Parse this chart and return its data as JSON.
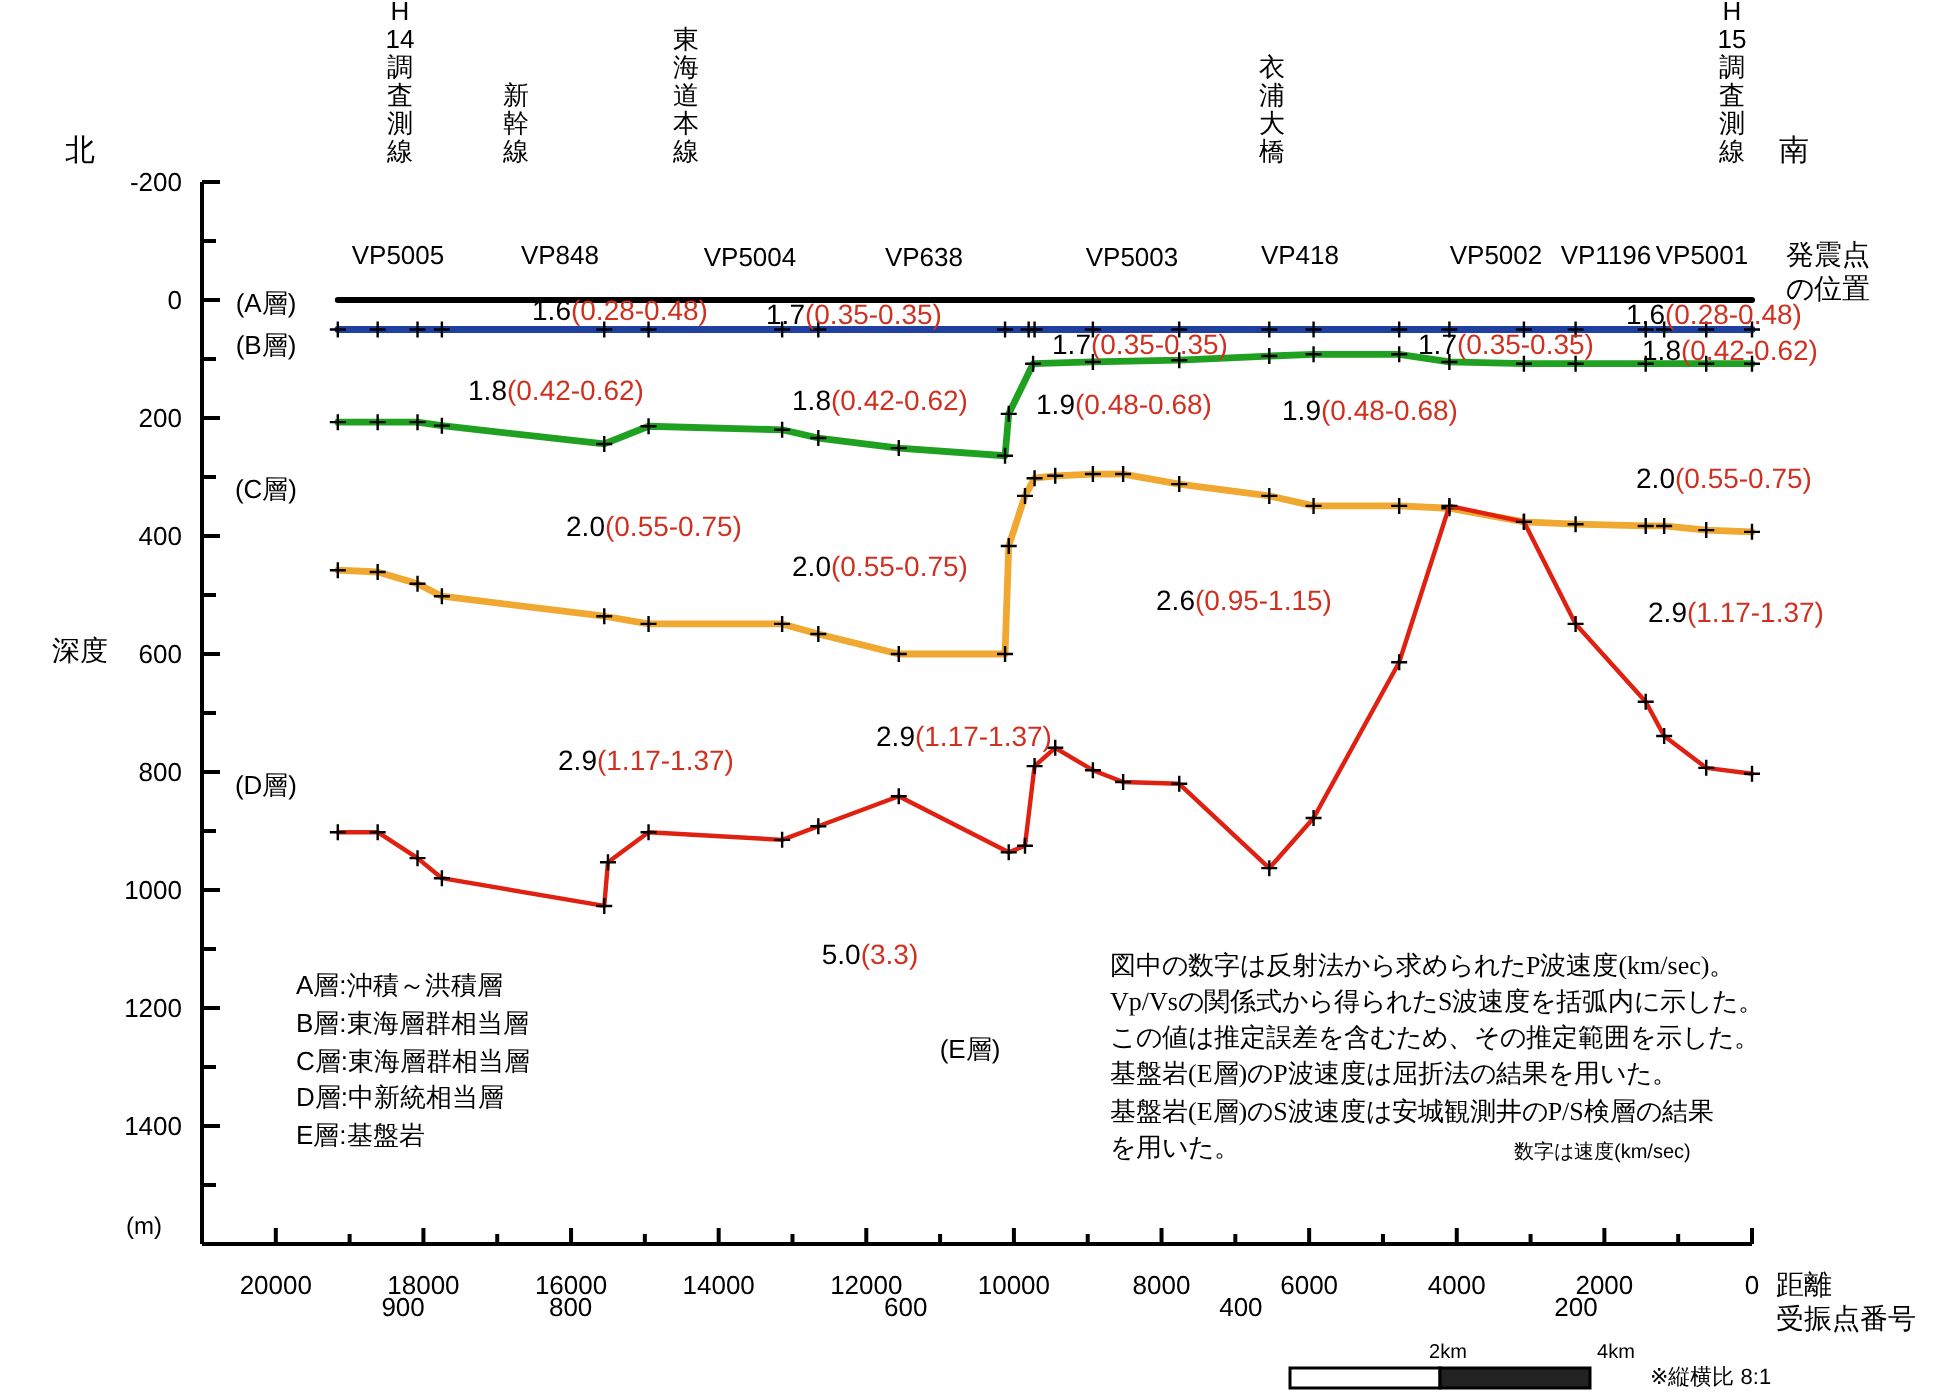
{
  "chart_data": {
    "type": "line",
    "xlabel": "距離",
    "ylabel": "深度",
    "marker": "cross",
    "xlim": [
      21000,
      0
    ],
    "ylim": [
      1600,
      -200
    ],
    "xticks": [
      20000,
      {
        "value": 19000,
        "label": null
      },
      18000,
      {
        "value": 17000,
        "label": null
      },
      16000,
      {
        "value": 15000,
        "label": null
      },
      14000,
      {
        "value": 13000,
        "label": null
      },
      12000,
      {
        "value": 11000,
        "label": null
      },
      10000,
      {
        "value": 9000,
        "label": null
      },
      8000,
      {
        "value": 7000,
        "label": null
      },
      6000,
      {
        "value": 5000,
        "label": null
      },
      4000,
      {
        "value": 3000,
        "label": null
      },
      2000,
      {
        "value": 1000,
        "label": null
      },
      0
    ],
    "yticks": [
      -200,
      {
        "value": -100,
        "label": null
      },
      0,
      {
        "value": 100,
        "label": null
      },
      200,
      {
        "value": 300,
        "label": null
      },
      400,
      {
        "value": 500,
        "label": null
      },
      600,
      {
        "value": 700,
        "label": null
      },
      800,
      {
        "value": 900,
        "label": null
      },
      1000,
      {
        "value": 1100,
        "label": null
      },
      1200,
      {
        "value": 1300,
        "label": null
      },
      1400,
      {
        "value": 1500,
        "label": null
      }
    ],
    "x2label": "受振点番号",
    "x2lim": [
      1020,
      95
    ],
    "x2ticks": [
      900,
      800,
      600,
      400,
      200
    ],
    "series": [
      {
        "color": "#000000",
        "marker": "none",
        "x": [
          19160,
          0
        ],
        "values": [
          0,
          0
        ]
      },
      {
        "color": "#2040a0",
        "x": [
          19160,
          18620,
          18080,
          17750,
          15550,
          14950,
          13140,
          12650,
          10120,
          9800,
          9720,
          8930,
          7760,
          6540,
          5940,
          4780,
          4100,
          3090,
          2390,
          1440,
          1190,
          620,
          0
        ],
        "values": [
          50,
          50,
          50,
          50,
          50,
          50,
          50,
          50,
          50,
          50,
          50,
          50,
          50,
          50,
          50,
          50,
          50,
          50,
          50,
          50,
          50,
          50,
          50
        ]
      },
      {
        "color": "#20a020",
        "x": [
          19160,
          18620,
          18080,
          17750,
          15550,
          14950,
          13140,
          12650,
          11560,
          10120,
          10070,
          9740,
          8930,
          7760,
          6540,
          5940,
          4780,
          4100,
          3090,
          2390,
          1440,
          620,
          0
        ],
        "values": [
          207,
          207,
          207,
          213,
          244,
          214,
          220,
          234,
          251,
          264,
          193,
          108,
          105,
          102,
          95,
          92,
          92,
          105,
          108,
          108,
          108,
          108,
          108
        ]
      },
      {
        "color": "#f0a830",
        "x": [
          19160,
          18620,
          18080,
          17750,
          15550,
          14950,
          13140,
          12650,
          11560,
          10120,
          10070,
          9850,
          9720,
          9440,
          8930,
          8520,
          7760,
          6540,
          5940,
          4780,
          4100,
          3090,
          2390,
          1440,
          1190,
          620,
          0
        ],
        "values": [
          458,
          461,
          481,
          502,
          536,
          549,
          549,
          566,
          600,
          600,
          417,
          332,
          302,
          298,
          295,
          295,
          312,
          332,
          349,
          349,
          353,
          376,
          380,
          383,
          383,
          390,
          393
        ]
      },
      {
        "color": "#e02010",
        "x": [
          19160,
          18620,
          18080,
          17750,
          15550,
          15500,
          14950,
          13140,
          12650,
          11560,
          10070,
          9850,
          9720,
          9440,
          8930,
          8520,
          7760,
          6540,
          5940,
          4780,
          4100,
          3090,
          2390,
          1440,
          1190,
          620,
          0
        ],
        "values": [
          902,
          902,
          946,
          980,
          1027,
          953,
          902,
          915,
          892,
          841,
          936,
          925,
          790,
          759,
          797,
          817,
          820,
          963,
          878,
          614,
          349,
          376,
          549,
          681,
          739,
          793,
          803
        ]
      }
    ],
    "annotations": [
      "H14調査測線",
      "新幹線",
      "東海道本線",
      "衣浦大橋",
      "H15調査測線",
      "VP5005",
      "VP848",
      "VP5004",
      "VP638",
      "VP5003",
      "VP418",
      "VP5002",
      "VP1196",
      "VP5001",
      "発震点の位置",
      "(A層)",
      "(B層)",
      "(C層)",
      "(D層)",
      "(E層)",
      "5.0(3.3)",
      "1.6(0.28-0.48)",
      "1.7(0.35-0.35)",
      "1.8(0.42-0.62)",
      "1.8(0.42-0.62)",
      "2.0(0.55-0.75)",
      "2.0(0.55-0.75)",
      "2.9(1.17-1.37)",
      "2.9(1.17-1.37)",
      "1.7(0.35-0.35)",
      "1.9(0.48-0.68)",
      "1.9(0.48-0.68)",
      "1.7(0.35-0.35)",
      "1.6(0.28-0.48)",
      "1.8(0.42-0.62)",
      "2.0(0.55-0.75)",
      "2.6(0.95-1.15)",
      "2.9(1.17-1.37)",
      "北",
      "南",
      "(m)",
      "A層:沖積～洪積層",
      "B層:東海層群相当層",
      "C層:東海層群相当層",
      "D層:中新統相当層",
      "E層:基盤岩",
      "図中の数字は反射法から求められたP波速度(km/sec)。",
      "Vp/Vsの関係式から得られたS波速度を括弧内に示した。",
      "この値は推定誤差を含むため、その推定範囲を示した。",
      "基盤岩(E層)のP波速度は屈折法の結果を用いた。",
      "基盤岩(E層)のS波速度は安城観測井のP/S検層の結果",
      "を用いた。",
      "数字は速度(km/sec)",
      "2km",
      "4km",
      "※縦横比 8:1"
    ]
  }
}
